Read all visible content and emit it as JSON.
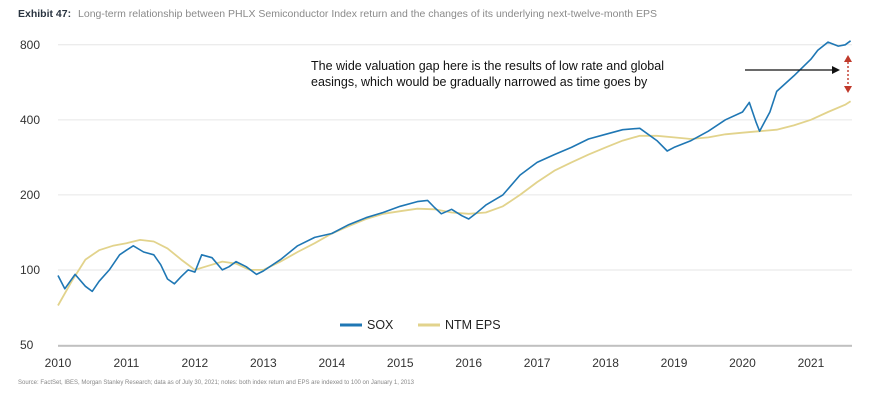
{
  "header": {
    "exhibit": "Exhibit 47:",
    "title": "Long-term relationship between PHLX Semiconductor Index return and the changes of its underlying next-twelve-month EPS"
  },
  "annotation": {
    "line1": "The wide valuation gap here is the results of low rate and global",
    "line2": "easings, which would be gradually narrowed as time goes by"
  },
  "source": "Source: FactSet, IBES, Morgan Stanley Research; data as of July 30, 2021; notes: both index return and EPS are indexed to 100 on January 1, 2013",
  "colors": {
    "sox": "#1f77b4",
    "eps": "#e2d38c",
    "grid": "#e6e6e6",
    "gap_arrow": "#c0392b"
  },
  "chart_data": {
    "type": "line",
    "yscale": "log",
    "ylim": [
      50,
      900
    ],
    "yticks": [
      50,
      100,
      200,
      400,
      800
    ],
    "xlim": [
      2010.0,
      2021.6
    ],
    "xticks": [
      2010,
      2011,
      2012,
      2013,
      2014,
      2015,
      2016,
      2017,
      2018,
      2019,
      2020,
      2021
    ],
    "grid": "horizontal",
    "legend": "bottom-center",
    "series": [
      {
        "name": "SOX",
        "color": "#1f77b4",
        "x": [
          2010.0,
          2010.1,
          2010.25,
          2010.4,
          2010.5,
          2010.6,
          2010.75,
          2010.9,
          2011.0,
          2011.1,
          2011.25,
          2011.4,
          2011.5,
          2011.6,
          2011.7,
          2011.8,
          2011.9,
          2012.0,
          2012.1,
          2012.25,
          2012.4,
          2012.5,
          2012.6,
          2012.75,
          2012.9,
          2013.0,
          2013.25,
          2013.5,
          2013.75,
          2014.0,
          2014.25,
          2014.5,
          2014.75,
          2015.0,
          2015.25,
          2015.4,
          2015.5,
          2015.6,
          2015.75,
          2015.9,
          2016.0,
          2016.1,
          2016.25,
          2016.5,
          2016.75,
          2017.0,
          2017.25,
          2017.5,
          2017.75,
          2018.0,
          2018.25,
          2018.5,
          2018.75,
          2018.9,
          2019.0,
          2019.25,
          2019.5,
          2019.75,
          2020.0,
          2020.1,
          2020.2,
          2020.25,
          2020.4,
          2020.5,
          2020.75,
          2021.0,
          2021.1,
          2021.25,
          2021.4,
          2021.5,
          2021.58
        ],
        "values": [
          95,
          84,
          96,
          86,
          82,
          90,
          100,
          115,
          120,
          125,
          118,
          115,
          105,
          92,
          88,
          94,
          100,
          98,
          115,
          112,
          100,
          103,
          108,
          103,
          96,
          99,
          110,
          125,
          135,
          140,
          152,
          162,
          170,
          180,
          188,
          190,
          178,
          168,
          175,
          165,
          160,
          168,
          182,
          200,
          240,
          270,
          290,
          310,
          335,
          350,
          365,
          370,
          330,
          300,
          310,
          330,
          360,
          400,
          430,
          470,
          390,
          360,
          430,
          520,
          600,
          700,
          760,
          820,
          790,
          800,
          830
        ]
      },
      {
        "name": "NTM EPS",
        "color": "#e2d38c",
        "x": [
          2010.0,
          2010.2,
          2010.4,
          2010.6,
          2010.8,
          2011.0,
          2011.2,
          2011.4,
          2011.6,
          2011.8,
          2012.0,
          2012.2,
          2012.4,
          2012.6,
          2012.8,
          2013.0,
          2013.25,
          2013.5,
          2013.75,
          2014.0,
          2014.25,
          2014.5,
          2014.75,
          2015.0,
          2015.25,
          2015.5,
          2015.75,
          2016.0,
          2016.25,
          2016.5,
          2016.75,
          2017.0,
          2017.25,
          2017.5,
          2017.75,
          2018.0,
          2018.25,
          2018.5,
          2018.75,
          2019.0,
          2019.25,
          2019.5,
          2019.75,
          2020.0,
          2020.25,
          2020.5,
          2020.75,
          2021.0,
          2021.25,
          2021.5,
          2021.58
        ],
        "values": [
          72,
          90,
          110,
          120,
          125,
          128,
          132,
          130,
          122,
          110,
          100,
          104,
          108,
          106,
          100,
          100,
          108,
          118,
          128,
          140,
          150,
          160,
          168,
          172,
          176,
          175,
          170,
          168,
          170,
          180,
          200,
          225,
          250,
          270,
          290,
          310,
          330,
          345,
          345,
          340,
          335,
          340,
          350,
          355,
          360,
          365,
          380,
          400,
          430,
          460,
          475
        ]
      }
    ]
  }
}
